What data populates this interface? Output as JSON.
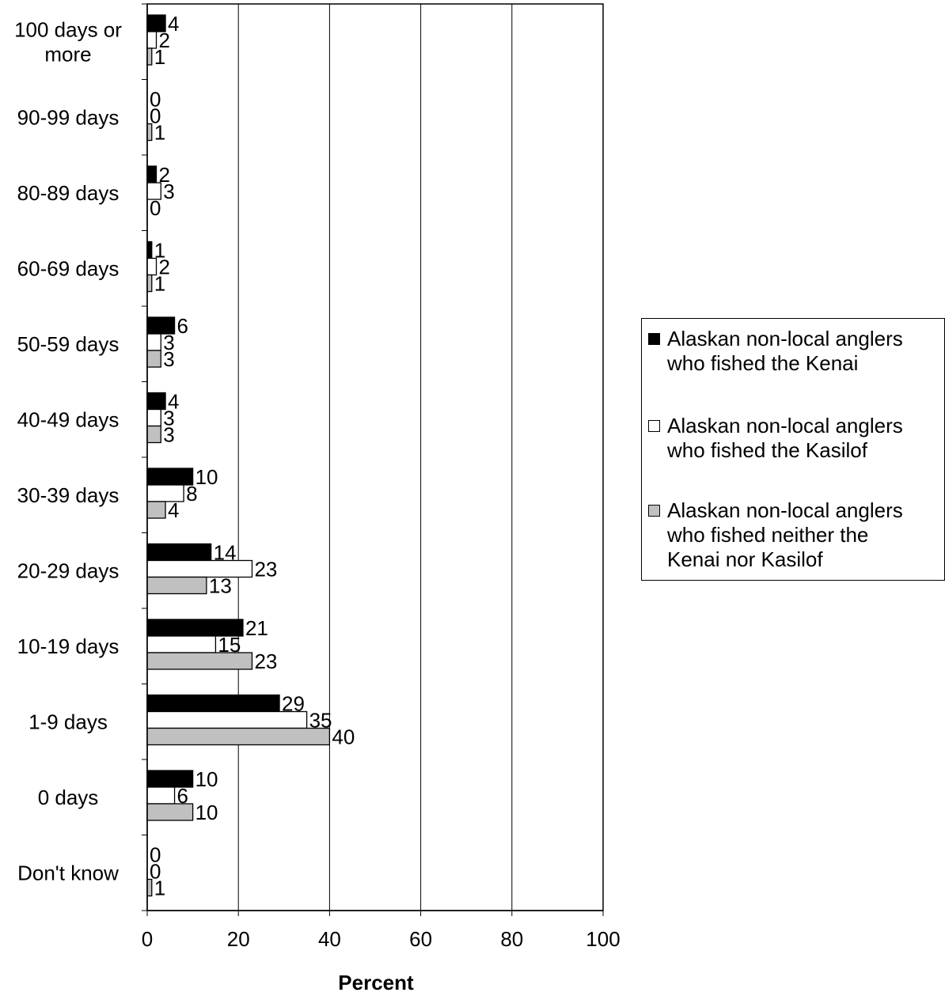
{
  "chart_data": {
    "type": "bar",
    "orientation": "horizontal",
    "title": "",
    "xlabel": "Percent",
    "ylabel": "",
    "xlim": [
      0,
      100
    ],
    "xticks": [
      0,
      20,
      40,
      60,
      80,
      100
    ],
    "grid": true,
    "legend_position": "right",
    "categories": [
      "100 days or more",
      "90-99 days",
      "80-89 days",
      "60-69 days",
      "50-59 days",
      "40-49 days",
      "30-39 days",
      "20-29 days",
      "10-19 days",
      "1-9 days",
      "0 days",
      "Don't know"
    ],
    "category_lines": [
      [
        "100 days or",
        "more"
      ],
      [
        "90-99 days"
      ],
      [
        "80-89 days"
      ],
      [
        "60-69 days"
      ],
      [
        "50-59 days"
      ],
      [
        "40-49 days"
      ],
      [
        "30-39 days"
      ],
      [
        "20-29 days"
      ],
      [
        "10-19 days"
      ],
      [
        "1-9 days"
      ],
      [
        "0 days"
      ],
      [
        "Don't know"
      ]
    ],
    "series": [
      {
        "name": "Alaskan non-local anglers who fished the Kenai",
        "color": "#000000",
        "values": [
          4,
          0,
          2,
          1,
          6,
          4,
          10,
          14,
          21,
          29,
          10,
          0
        ]
      },
      {
        "name": "Alaskan non-local anglers who fished the Kasilof",
        "color": "#ffffff",
        "values": [
          2,
          0,
          3,
          2,
          3,
          3,
          8,
          23,
          15,
          35,
          6,
          0
        ]
      },
      {
        "name": "Alaskan non-local anglers who fished neither the Kenai nor Kasilof",
        "color": "#c0c0c0",
        "values": [
          1,
          1,
          0,
          1,
          3,
          3,
          4,
          13,
          23,
          40,
          10,
          1
        ]
      }
    ],
    "legend_lines": [
      [
        "Alaskan non-local anglers",
        "who fished the Kenai"
      ],
      [
        "Alaskan non-local anglers",
        "who fished the Kasilof"
      ],
      [
        "Alaskan non-local anglers",
        "who fished neither the",
        "Kenai nor Kasilof"
      ]
    ]
  }
}
